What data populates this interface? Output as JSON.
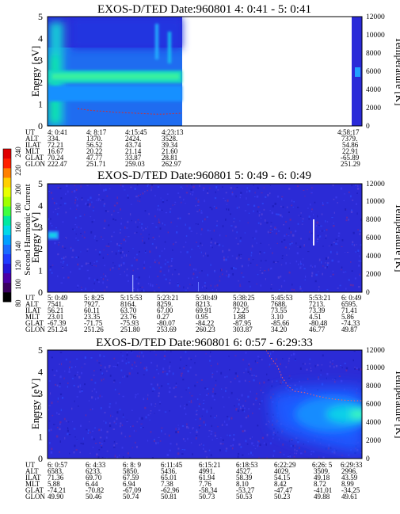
{
  "colorbar": {
    "label": "Second Harmonic Current",
    "ticks": [
      "80",
      "100",
      "120",
      "140",
      "160",
      "180",
      "200",
      "220",
      "240"
    ],
    "colors": [
      "#000000",
      "#3a0060",
      "#4b00a8",
      "#2418d8",
      "#1f3cff",
      "#1a6cff",
      "#00a0ff",
      "#00d8e8",
      "#00e8a0",
      "#40ff40",
      "#a0ff00",
      "#e8ff00",
      "#ffd000",
      "#ff8000",
      "#ff2000",
      "#e00000"
    ]
  },
  "chart_data": [
    {
      "type": "heatmap",
      "title": "EXOS-D/TED  Date:960801  4: 0:41 - 5: 0:41",
      "ylabel": "Energy [eV]",
      "y2label": "Temperature [K]",
      "ylim": [
        0,
        5
      ],
      "y2lim": [
        0,
        12000
      ],
      "yticks": [
        "0",
        "1",
        "2",
        "3",
        "4",
        "5"
      ],
      "y2ticks": [
        "0",
        "2000",
        "4000",
        "6000",
        "8000",
        "10000",
        "12000"
      ],
      "x_fraction_with_data": 0.5,
      "bright_band_energy_eV": 2.0,
      "temperature_trace_K": [
        1900,
        1750,
        1650,
        1600,
        1500,
        1450,
        1400,
        1350,
        1300,
        1300,
        1350,
        1400
      ],
      "orbit_table": {
        "row_labels": [
          "UT",
          "ALT",
          "ILAT",
          "MLT",
          "GLAT",
          "GLON"
        ],
        "columns": [
          {
            "UT": "4: 0:41",
            "ALT": "334.",
            "ILAT": "72.21",
            "MLT": "16.67",
            "GLAT": "70.24",
            "GLON": "222.47"
          },
          {
            "UT": "4: 8:17",
            "ALT": "1370.",
            "ILAT": "56.52",
            "MLT": "20.22",
            "GLAT": "47.77",
            "GLON": "251.71"
          },
          {
            "UT": "4:15:45",
            "ALT": "2424.",
            "ILAT": "43.74",
            "MLT": "21.14",
            "GLAT": "33.87",
            "GLON": "259.03"
          },
          {
            "UT": "4:23:13",
            "ALT": "3528.",
            "ILAT": "39.34",
            "MLT": "21.60",
            "GLAT": "28.81",
            "GLON": "262.97"
          },
          {
            "UT": "4:58:17",
            "ALT": "7379.",
            "ILAT": "54.86",
            "MLT": "22.91",
            "GLAT": "-65.89",
            "GLON": "251.29"
          }
        ]
      }
    },
    {
      "type": "heatmap",
      "title": "EXOS-D/TED  Date:960801  5: 0:49 - 6: 0:49",
      "ylabel": "Energy [eV]",
      "y2label": "Temperature [K]",
      "ylim": [
        0,
        5
      ],
      "y2lim": [
        0,
        12000
      ],
      "yticks": [
        "0",
        "1",
        "2",
        "3",
        "4",
        "5"
      ],
      "y2ticks": [
        "0",
        "2000",
        "4000",
        "6000",
        "8000",
        "10000",
        "12000"
      ],
      "orbit_table": {
        "row_labels": [
          "UT",
          "ALT",
          "ILAT",
          "MLT",
          "GLAT",
          "GLON"
        ],
        "columns": [
          {
            "UT": "5: 0:49",
            "ALT": "7541.",
            "ILAT": "56.21",
            "MLT": "23.01",
            "GLAT": "-67.39",
            "GLON": "251.24"
          },
          {
            "UT": "5: 8:25",
            "ALT": "7927.",
            "ILAT": "60.11",
            "MLT": "23.35",
            "GLAT": "-71.75",
            "GLON": "251.26"
          },
          {
            "UT": "5:15:53",
            "ALT": "8164.",
            "ILAT": "63.70",
            "MLT": "23.76",
            "GLAT": "-75.93",
            "GLON": "251.80"
          },
          {
            "UT": "5:23:21",
            "ALT": "8259.",
            "ILAT": "67.00",
            "MLT": "0.27",
            "GLAT": "-80.07",
            "GLON": "253.69"
          },
          {
            "UT": "5:30:49",
            "ALT": "8213.",
            "ILAT": "69.91",
            "MLT": "0.95",
            "GLAT": "-84.22",
            "GLON": "260.23"
          },
          {
            "UT": "5:38:25",
            "ALT": "8020.",
            "ILAT": "72.25",
            "MLT": "1.88",
            "GLAT": "-87.95",
            "GLON": "303.87"
          },
          {
            "UT": "5:45:53",
            "ALT": "7688.",
            "ILAT": "73.55",
            "MLT": "3.10",
            "GLAT": "-85.66",
            "GLON": "34.20"
          },
          {
            "UT": "5:53:21",
            "ALT": "7213.",
            "ILAT": "73.39",
            "MLT": "4.51",
            "GLAT": "-80.48",
            "GLON": "46.77"
          },
          {
            "UT": "6: 0:49",
            "ALT": "6595.",
            "ILAT": "71.41",
            "MLT": "5.86",
            "GLAT": "-74.33",
            "GLON": "49.87"
          }
        ]
      }
    },
    {
      "type": "heatmap",
      "title": "EXOS-D/TED  Date:960801  6: 0:57 - 6:29:33",
      "ylabel": "Energy [eV]",
      "y2label": "Temperature [K]",
      "ylim": [
        0,
        5
      ],
      "y2lim": [
        0,
        12000
      ],
      "yticks": [
        "0",
        "1",
        "2",
        "3",
        "4",
        "5"
      ],
      "y2ticks": [
        "0",
        "2000",
        "4000",
        "6000",
        "8000",
        "10000",
        "12000"
      ],
      "orbit_table": {
        "row_labels": [
          "UT",
          "ALT",
          "ILAT",
          "MLT",
          "GLAT",
          "GLON"
        ],
        "columns": [
          {
            "UT": "6: 0:57",
            "ALT": "6583.",
            "ILAT": "71.36",
            "MLT": "5.88",
            "GLAT": "-74.21",
            "GLON": "49.90"
          },
          {
            "UT": "6: 4:33",
            "ALT": "6233.",
            "ILAT": "69.70",
            "MLT": "6.44",
            "GLAT": "-70.82",
            "GLON": "50.46"
          },
          {
            "UT": "6: 8: 9",
            "ALT": "5850.",
            "ILAT": "67.59",
            "MLT": "6.94",
            "GLAT": "-67.09",
            "GLON": "50.74"
          },
          {
            "UT": "6:11:45",
            "ALT": "5436.",
            "ILAT": "65.01",
            "MLT": "7.38",
            "GLAT": "-62.96",
            "GLON": "50.81"
          },
          {
            "UT": "6:15:21",
            "ALT": "4991.",
            "ILAT": "61.94",
            "MLT": "7.76",
            "GLAT": "-58.34",
            "GLON": "50.73"
          },
          {
            "UT": "6:18:53",
            "ALT": "4527.",
            "ILAT": "58.39",
            "MLT": "8.10",
            "GLAT": "-53.27",
            "GLON": "50.53"
          },
          {
            "UT": "6:22:29",
            "ALT": "4029.",
            "ILAT": "54.15",
            "MLT": "8.42",
            "GLAT": "-47.47",
            "GLON": "50.23"
          },
          {
            "UT": "6:26: 5",
            "ALT": "3509.",
            "ILAT": "49.18",
            "MLT": "8.72",
            "GLAT": "-41.01",
            "GLON": "49.88"
          },
          {
            "UT": "6:29:33",
            "ALT": "2996.",
            "ILAT": "43.59",
            "MLT": "8.99",
            "GLAT": "-34.25",
            "GLON": "49.61"
          }
        ]
      }
    }
  ]
}
